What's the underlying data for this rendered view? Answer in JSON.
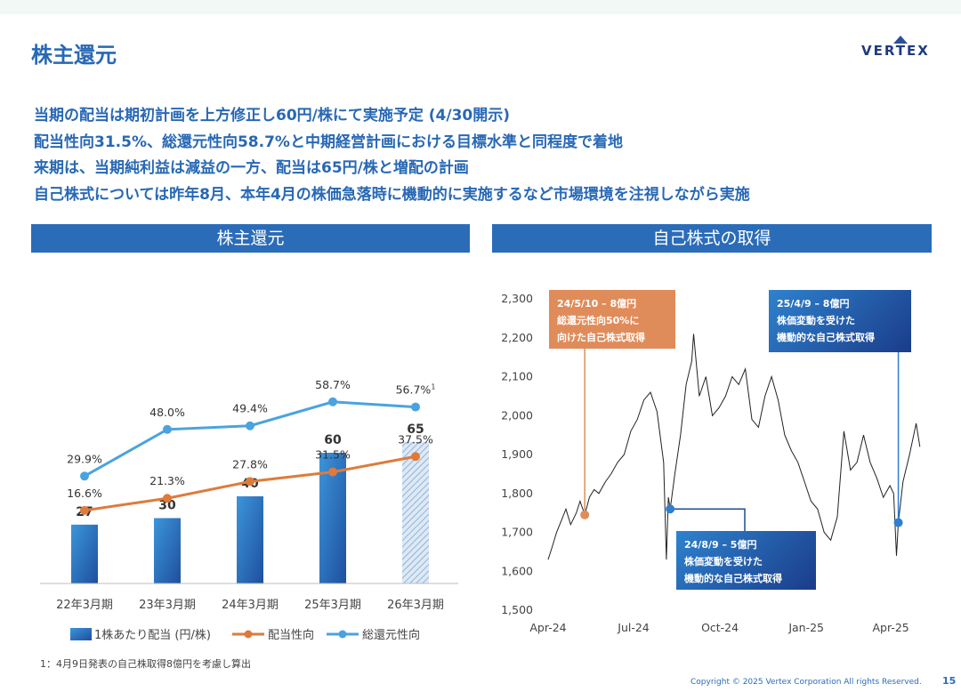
{
  "page": {
    "title": "株主還元",
    "logo_text": "VERTEX",
    "bullets": [
      "当期の配当は期初計画を上方修正し60円/株にて実施予定 (4/30開示)",
      "配当性向31.5%、総還元性向58.7%と中期経営計画における目標水準と同程度で着地",
      "来期は、当期純利益は減益の一方、配当は65円/株と増配の計画",
      "自己株式については昨年8月、本年4月の株価急落時に機動的に実施するなど市場環境を注視しながら実施"
    ],
    "footnote": "1：4月9日発表の自己株取得8億円を考慮し算出",
    "copyright": "Copyright © 2025 Vertex Corporation All rights Reserved.",
    "page_number": "15"
  },
  "annotations": {
    "a": [
      "24/5/10 – 8億円",
      "総還元性向50%に",
      "向けた自己株式取得"
    ],
    "b": [
      "25/4/9 – 8億円",
      "株価変動を受けた",
      "機動的な自己株式取得"
    ],
    "c": [
      "24/8/9 – 5億円",
      "株価変動を受けた",
      "機動的な自己株式取得"
    ]
  },
  "colors": {
    "accent": "#2b6cb9",
    "dividend_line": "#de7b3b",
    "total_return_line": "#4aa3df",
    "bar": "#2f7fcf",
    "annotation_orange": "#e08c5a",
    "annotation_blue": "#1f4a96"
  },
  "chart_data": [
    {
      "type": "bar",
      "title": "株主還元",
      "categories": [
        "22年3月期",
        "23年3月期",
        "24年3月期",
        "25年3月期",
        "26年3月期"
      ],
      "series": [
        {
          "name": "1株あたり配当 (円/株)",
          "type": "bar",
          "values": [
            27,
            30,
            40,
            60,
            65
          ],
          "labels": [
            "27",
            "30",
            "40",
            "60",
            "65"
          ],
          "forecast_index": 4
        },
        {
          "name": "配当性向",
          "type": "line",
          "values": [
            16.6,
            21.3,
            27.8,
            31.5,
            37.5
          ],
          "labels": [
            "16.6%",
            "21.3%",
            "27.8%",
            "31.5%",
            "37.5%"
          ]
        },
        {
          "name": "総還元性向",
          "type": "line",
          "values": [
            29.9,
            48.0,
            49.4,
            58.7,
            56.7
          ],
          "labels": [
            "29.9%",
            "48.0%",
            "49.4%",
            "58.7%",
            "56.7%"
          ],
          "last_label_footnote": "1"
        }
      ],
      "legend": "bottom"
    },
    {
      "type": "line",
      "title": "自己株式の取得",
      "x_ticks": [
        "Apr-24",
        "Jul-24",
        "Oct-24",
        "Jan-25",
        "Apr-25"
      ],
      "y_ticks": [
        "1,500",
        "1,600",
        "1,700",
        "1,800",
        "1,900",
        "2,000",
        "2,100",
        "2,200",
        "2,300"
      ],
      "ylim": [
        1500,
        2300
      ],
      "xlim": [
        "2024-04-01",
        "2025-05-05"
      ],
      "series": [
        {
          "name": "株価",
          "points": [
            [
              "2024-04-01",
              1630
            ],
            [
              "2024-04-05",
              1660
            ],
            [
              "2024-04-10",
              1700
            ],
            [
              "2024-04-15",
              1730
            ],
            [
              "2024-04-20",
              1760
            ],
            [
              "2024-04-25",
              1720
            ],
            [
              "2024-05-01",
              1750
            ],
            [
              "2024-05-05",
              1780
            ],
            [
              "2024-05-10",
              1745
            ],
            [
              "2024-05-15",
              1790
            ],
            [
              "2024-05-20",
              1810
            ],
            [
              "2024-05-25",
              1800
            ],
            [
              "2024-06-01",
              1830
            ],
            [
              "2024-06-07",
              1850
            ],
            [
              "2024-06-14",
              1880
            ],
            [
              "2024-06-21",
              1900
            ],
            [
              "2024-06-28",
              1960
            ],
            [
              "2024-07-05",
              1990
            ],
            [
              "2024-07-12",
              2040
            ],
            [
              "2024-07-19",
              2060
            ],
            [
              "2024-07-26",
              2010
            ],
            [
              "2024-08-02",
              1880
            ],
            [
              "2024-08-05",
              1630
            ],
            [
              "2024-08-07",
              1790
            ],
            [
              "2024-08-09",
              1760
            ],
            [
              "2024-08-14",
              1850
            ],
            [
              "2024-08-20",
              1950
            ],
            [
              "2024-08-26",
              2080
            ],
            [
              "2024-09-01",
              2140
            ],
            [
              "2024-09-03",
              2210
            ],
            [
              "2024-09-09",
              2050
            ],
            [
              "2024-09-16",
              2100
            ],
            [
              "2024-09-23",
              2000
            ],
            [
              "2024-09-30",
              2020
            ],
            [
              "2024-10-07",
              2050
            ],
            [
              "2024-10-14",
              2100
            ],
            [
              "2024-10-21",
              2080
            ],
            [
              "2024-10-28",
              2120
            ],
            [
              "2024-11-04",
              1990
            ],
            [
              "2024-11-11",
              1970
            ],
            [
              "2024-11-18",
              2050
            ],
            [
              "2024-11-25",
              2100
            ],
            [
              "2024-12-02",
              2040
            ],
            [
              "2024-12-09",
              1950
            ],
            [
              "2024-12-16",
              1910
            ],
            [
              "2024-12-23",
              1880
            ],
            [
              "2024-12-30",
              1830
            ],
            [
              "2025-01-06",
              1780
            ],
            [
              "2025-01-13",
              1760
            ],
            [
              "2025-01-20",
              1700
            ],
            [
              "2025-01-27",
              1680
            ],
            [
              "2025-02-03",
              1740
            ],
            [
              "2025-02-10",
              1960
            ],
            [
              "2025-02-17",
              1860
            ],
            [
              "2025-02-24",
              1880
            ],
            [
              "2025-03-03",
              1950
            ],
            [
              "2025-03-10",
              1880
            ],
            [
              "2025-03-17",
              1840
            ],
            [
              "2025-03-24",
              1790
            ],
            [
              "2025-03-31",
              1820
            ],
            [
              "2025-04-04",
              1800
            ],
            [
              "2025-04-07",
              1640
            ],
            [
              "2025-04-09",
              1725
            ],
            [
              "2025-04-14",
              1830
            ],
            [
              "2025-04-21",
              1900
            ],
            [
              "2025-04-28",
              1980
            ],
            [
              "2025-05-02",
              1920
            ]
          ]
        }
      ],
      "markers": [
        {
          "date": "2024-05-10",
          "value": 1745,
          "annotation": "a"
        },
        {
          "date": "2024-08-09",
          "value": 1760,
          "annotation": "c"
        },
        {
          "date": "2025-04-09",
          "value": 1725,
          "annotation": "b"
        }
      ],
      "grid": false
    }
  ]
}
